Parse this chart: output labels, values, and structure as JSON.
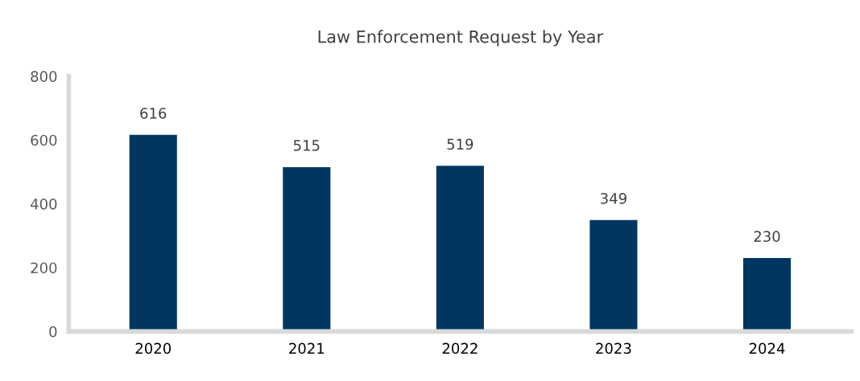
{
  "chart_data": {
    "type": "bar",
    "title": "Law Enforcement Request by Year",
    "categories": [
      "2020",
      "2021",
      "2022",
      "2023",
      "2024"
    ],
    "values": [
      616,
      515,
      519,
      349,
      230
    ],
    "color": "#003660",
    "ylim": [
      0,
      800
    ],
    "yticks": [
      0,
      200,
      400,
      600,
      800
    ],
    "grid": false,
    "data_labels": true
  }
}
